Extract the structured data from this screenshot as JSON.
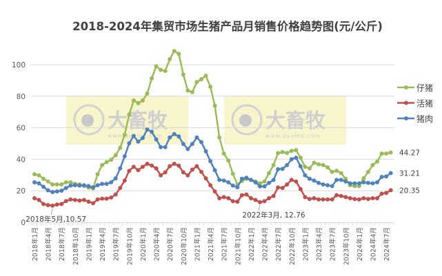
{
  "chart_data": {
    "type": "line",
    "title": "2018-2024年集贸市场生猪产品月销售价格趋势图(元/公斤)",
    "xlabel": "",
    "ylabel": "",
    "ylim": [
      0,
      110
    ],
    "yticks": [
      0,
      20,
      40,
      60,
      80,
      100
    ],
    "grid": true,
    "legend_position": "right",
    "x_start": "2018-01",
    "x_end": "2024-08",
    "tick_labels": [
      "2018年1月",
      "2018年4月",
      "2018年7月",
      "2018年10月",
      "2019年1月",
      "2019年4月",
      "2019年7月",
      "2019年10月",
      "2020年1月",
      "2020年4月",
      "2020年7月",
      "2020年10月",
      "2021年1月",
      "2021年4月",
      "2021年7月",
      "2021年10月",
      "2022年1月",
      "2022年4月",
      "2022年7月",
      "2022年10月",
      "2023年1月",
      "2023年4月",
      "2023年7月",
      "2023年10月",
      "2024年1月",
      "2024年4月",
      "2024年7月"
    ],
    "series": [
      {
        "name": "仔猪",
        "color": "#9bbb59",
        "end_label": "44.27",
        "values": [
          30.5,
          29.8,
          27.6,
          25.9,
          24,
          24,
          24,
          25.4,
          25.4,
          24.4,
          24,
          23,
          22,
          21.5,
          30.5,
          36.3,
          38.2,
          39.7,
          42.6,
          47.2,
          55.5,
          68.3,
          77.3,
          75.6,
          77.3,
          81.7,
          91.3,
          99,
          96.7,
          96,
          103.5,
          108.7,
          106.8,
          93.8,
          83.6,
          82.6,
          89,
          90.8,
          93,
          86,
          74,
          53.8,
          43.6,
          39.2,
          30.8,
          24,
          26.2,
          27.6,
          26.9,
          25.9,
          24.7,
          25.9,
          31.2,
          36.3,
          43.9,
          44.6,
          44,
          45.3,
          45.8,
          41,
          35.2,
          34.2,
          37.8,
          36.8,
          36.3,
          34.9,
          32,
          32.7,
          31.2,
          27.6,
          23.5,
          23,
          23,
          27.9,
          32,
          36.3,
          38.5,
          43.6,
          43.6,
          44.27
        ]
      },
      {
        "name": "活猪",
        "color": "#c0504d",
        "end_label": "20.35",
        "values": [
          15.3,
          14.2,
          11.6,
          10.9,
          10.57,
          11.3,
          11.6,
          13.5,
          14.5,
          14.2,
          13.8,
          14.2,
          13.1,
          12.1,
          14.5,
          15,
          15,
          15.7,
          17.7,
          21.8,
          26.5,
          32.7,
          35.2,
          33.1,
          35.2,
          37.1,
          36,
          34.2,
          29.8,
          31.7,
          35.6,
          37.1,
          35.9,
          31.7,
          29.8,
          33.4,
          35.6,
          32,
          27.9,
          23.5,
          19.6,
          15.3,
          16,
          15.3,
          13.4,
          13.1,
          17.2,
          17.7,
          15.3,
          14.2,
          12.76,
          13.4,
          15.3,
          16.7,
          22.1,
          21.8,
          24,
          26.9,
          25.9,
          21.1,
          16,
          14.8,
          15.3,
          14.5,
          14.5,
          14.5,
          14.5,
          17.2,
          16.7,
          16,
          15.3,
          14.8,
          14.5,
          15.3,
          14.8,
          15.3,
          15.3,
          18.2,
          18.6,
          20.35
        ]
      },
      {
        "name": "猪肉",
        "color": "#4f81bd",
        "end_label": "31.21",
        "values": [
          25.4,
          24.7,
          22.5,
          20.3,
          19.2,
          19.6,
          20.1,
          21.8,
          23.3,
          23.5,
          23.3,
          23.5,
          23,
          22.2,
          23.5,
          24.4,
          24.4,
          25.4,
          27.9,
          34.2,
          41.9,
          50.1,
          54.8,
          51.2,
          53.5,
          58.9,
          57.4,
          52.6,
          47.7,
          47.7,
          53.8,
          56,
          54.5,
          49.7,
          46.5,
          49.7,
          53.8,
          50.9,
          45.1,
          38.8,
          33.1,
          26.9,
          26.5,
          25.4,
          23.3,
          22.2,
          27.6,
          28.3,
          26.9,
          25.4,
          22.8,
          22.8,
          25,
          26.9,
          33.7,
          33.9,
          36.3,
          40,
          41,
          35.6,
          29.8,
          27.6,
          26.5,
          25,
          24,
          23.5,
          23,
          26.9,
          26.9,
          25.9,
          24.7,
          24.7,
          24.7,
          25.4,
          25,
          24.7,
          25.4,
          28.8,
          29.1,
          31.21
        ]
      }
    ],
    "annotations": [
      {
        "text": "2018年5月,10.57",
        "series": "活猪",
        "x": "2018-05",
        "y": 10.57
      },
      {
        "text": "2022年3月, 12.76",
        "series": "活猪",
        "x": "2022-03",
        "y": 12.76
      }
    ]
  },
  "watermark": {
    "logo_text": "大畜牧",
    "url_text": "www.dxumu.com"
  }
}
